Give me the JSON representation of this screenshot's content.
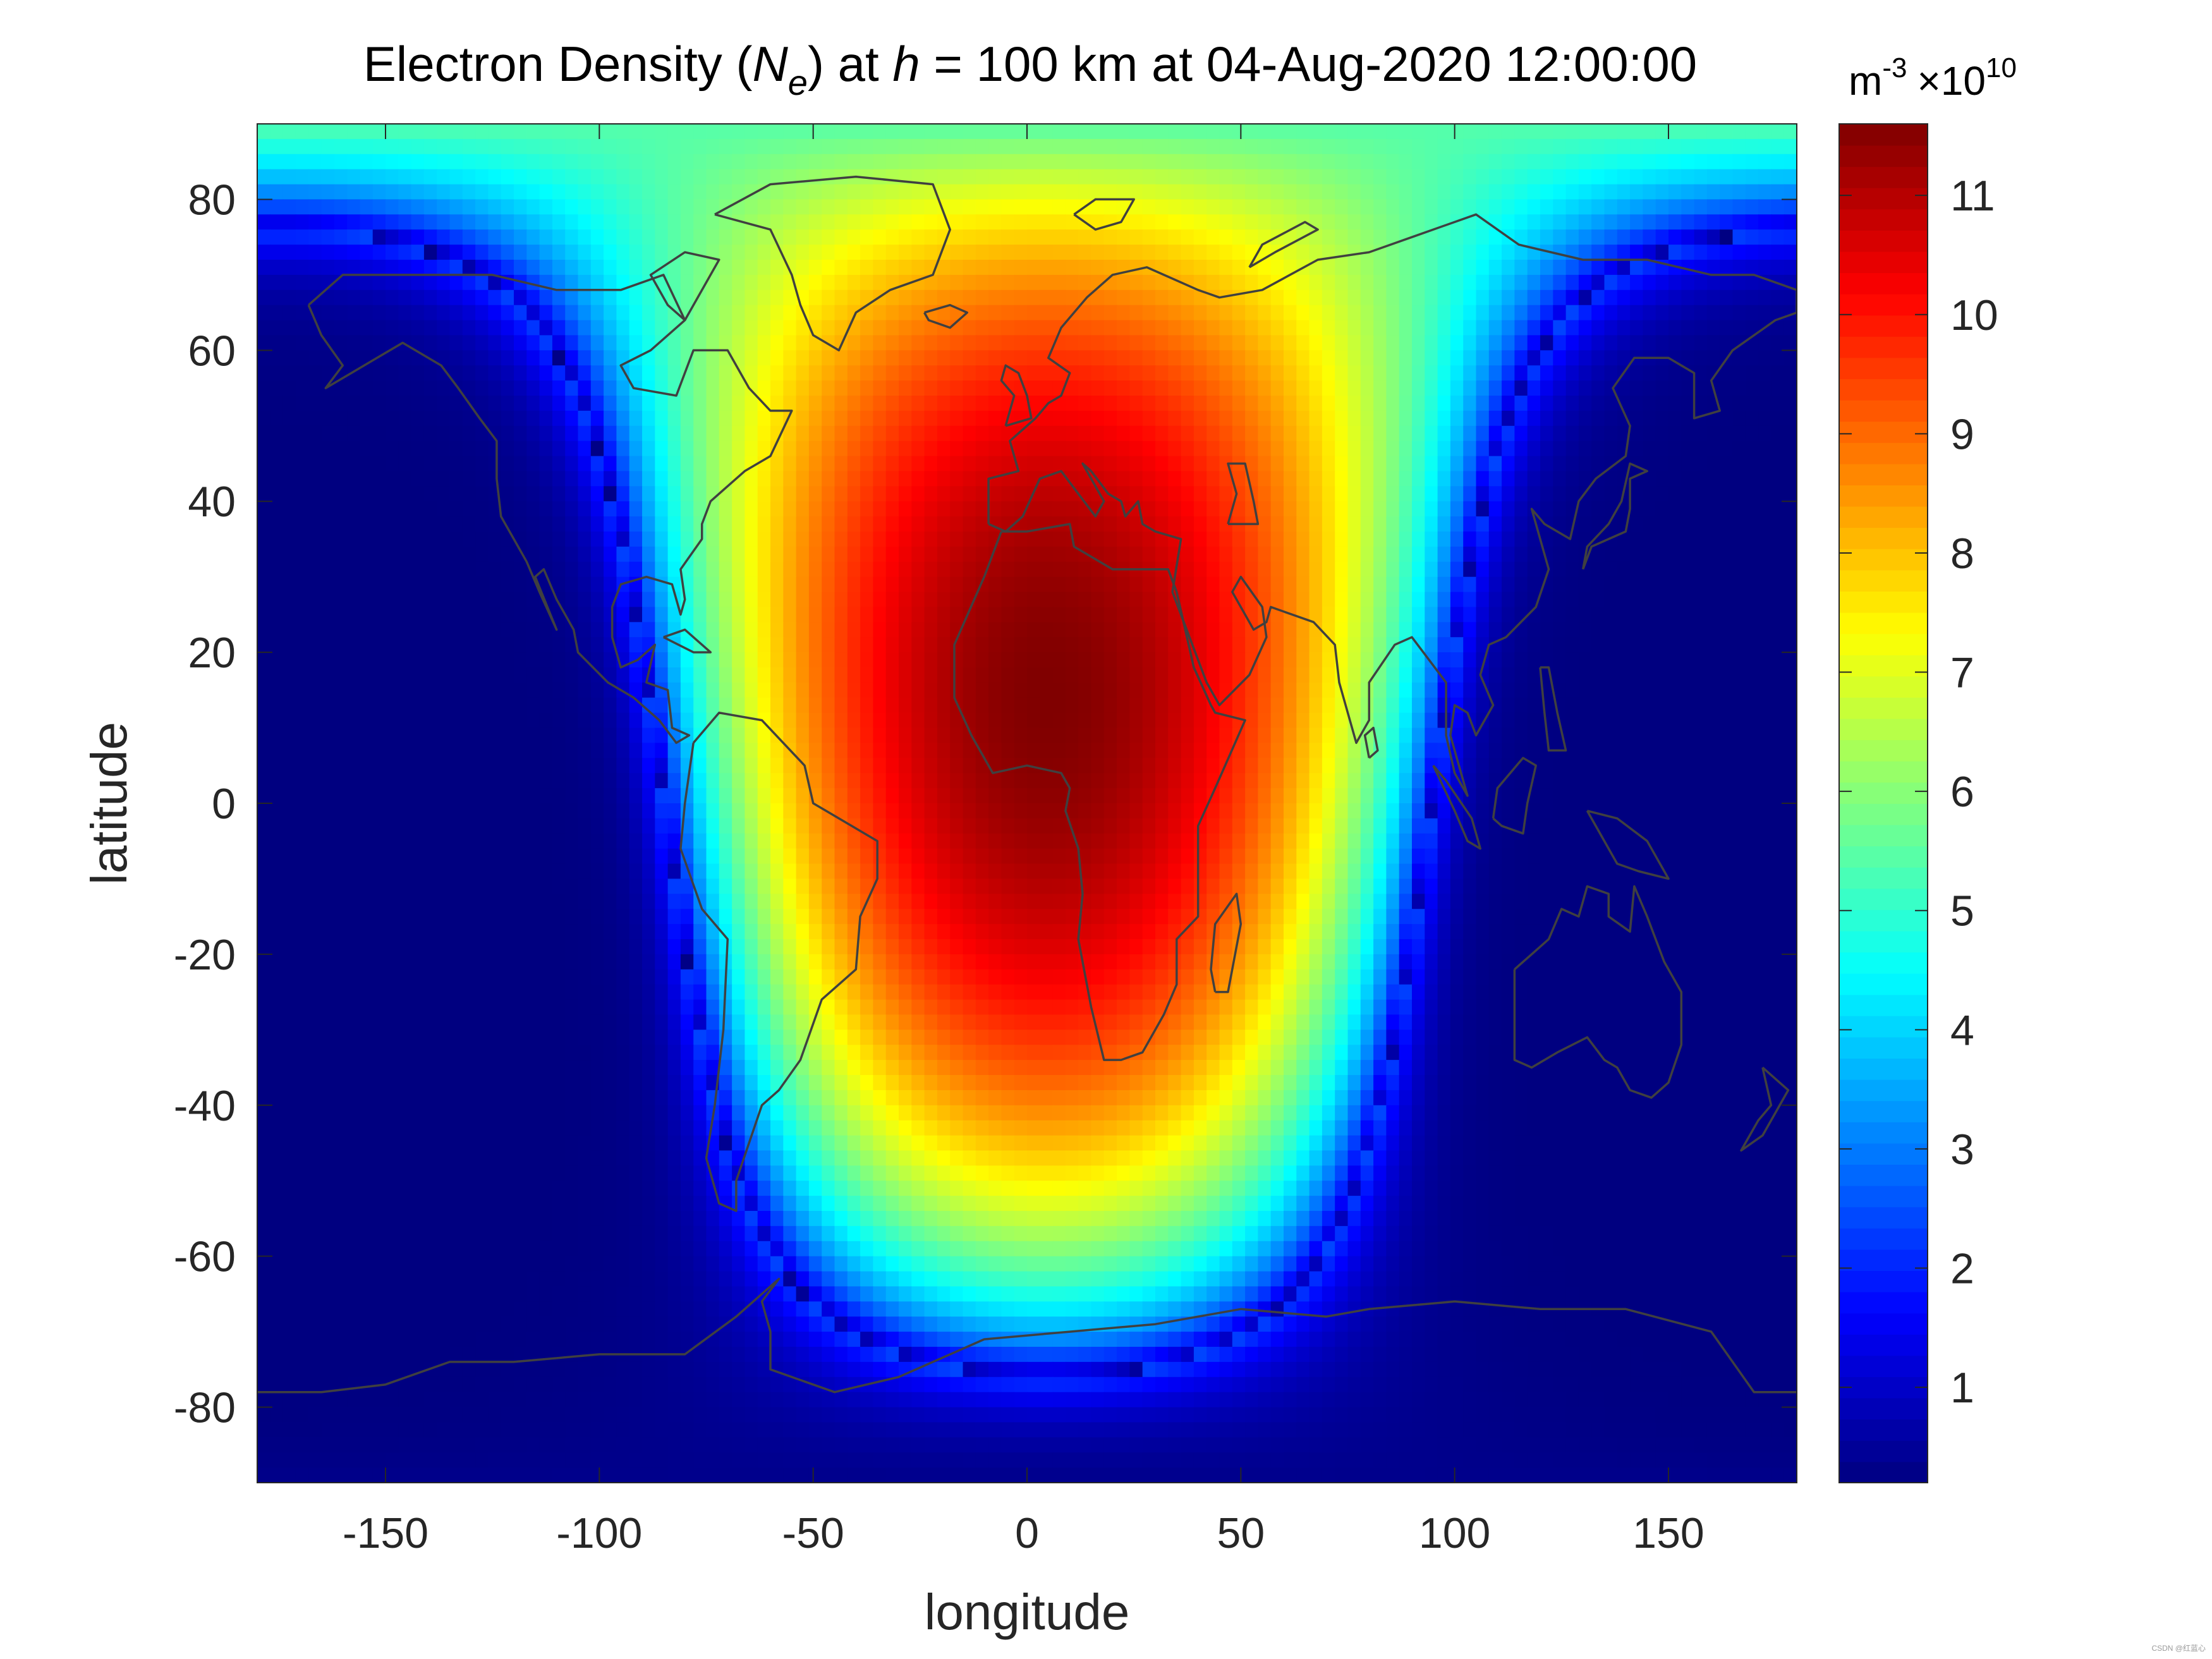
{
  "chart_data": {
    "type": "heatmap",
    "title_parts": [
      "Electron Density (",
      "N",
      "e",
      ") at ",
      "h",
      " = 100 km at 04-Aug-2020 12:00:00"
    ],
    "xlabel": "longitude",
    "ylabel": "latitude",
    "xlim": [
      -180,
      180
    ],
    "ylim": [
      -90,
      90
    ],
    "xticks": [
      -150,
      -100,
      -50,
      0,
      50,
      100,
      150
    ],
    "yticks": [
      -80,
      -60,
      -40,
      -20,
      0,
      20,
      40,
      60,
      80
    ],
    "colormap": "jet",
    "colorbar": {
      "unit_base": "m",
      "unit_exp": "-3",
      "scale_base": "×10",
      "scale_exp": "10",
      "range": [
        0.2,
        11.6
      ],
      "ticks": [
        1,
        2,
        3,
        4,
        5,
        6,
        7,
        8,
        9,
        10,
        11
      ]
    },
    "peak": {
      "longitude": 5,
      "latitude": 14,
      "value": 11.6
    },
    "night_value": 0.2,
    "coastline_color": "#404040",
    "watermark": "CSDN @红蓝心"
  }
}
